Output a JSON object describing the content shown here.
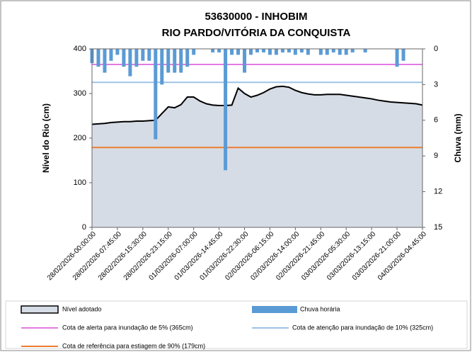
{
  "chart_data": {
    "type": "area",
    "title": "53630000 - INHOBIM",
    "subtitle": "RIO PARDO/VITÓRIA DA CONQUISTA",
    "ylabel": "Nível do Rio (cm)",
    "y2label": "Chuva (mm)",
    "categories": [
      "28/02/2026-00:00:00",
      null,
      null,
      null,
      "28/02/2026-07:45:00",
      null,
      null,
      null,
      "28/02/2026-15:30:00",
      null,
      null,
      null,
      "28/02/2026-23:15:00",
      null,
      null,
      null,
      "01/03/2026-07:00:00",
      null,
      null,
      null,
      "01/03/2026-14:45:00",
      null,
      null,
      null,
      "01/03/2026-22:30:00",
      null,
      null,
      null,
      "02/03/2026-06:15:00",
      null,
      null,
      null,
      "02/03/2026-14:00:00",
      null,
      null,
      null,
      "02/03/2026-21:45:00",
      null,
      null,
      null,
      "03/03/2026-05:30:00",
      null,
      null,
      null,
      "03/03/2026-13:15:00",
      null,
      null,
      null,
      "03/03/2026-21:00:00",
      null,
      null,
      null,
      "04/03/2026-04:45:00"
    ],
    "series": [
      {
        "name": "Nível adotado",
        "type": "area",
        "color": "#d6dce5",
        "line_color": "#000000",
        "values": [
          231,
          232,
          233,
          235,
          236,
          237,
          237,
          238,
          238,
          239,
          240,
          255,
          270,
          268,
          275,
          292,
          292,
          283,
          277,
          274,
          273,
          273,
          274,
          312,
          300,
          292,
          296,
          302,
          310,
          315,
          316,
          314,
          307,
          302,
          299,
          297,
          297,
          298,
          298,
          298,
          296,
          294,
          292,
          290,
          288,
          285,
          283,
          281,
          280,
          279,
          278,
          277,
          274
        ]
      },
      {
        "name": "Chuva horária",
        "type": "bar",
        "axis": "y2",
        "color": "#5b9bd5",
        "values": [
          1.2,
          1.5,
          2.0,
          1.0,
          0.5,
          1.5,
          2.3,
          1.5,
          1.0,
          1.0,
          7.6,
          3.0,
          2.0,
          2.0,
          2.0,
          1.5,
          0.5,
          0,
          0,
          0.3,
          0.3,
          10.2,
          0.5,
          0.5,
          2.0,
          0.5,
          0.3,
          0.3,
          0.5,
          0.5,
          0.3,
          0.3,
          0.5,
          0.3,
          0.5,
          0,
          0.5,
          0.5,
          0.3,
          0.5,
          0.5,
          0.3,
          0,
          0.3,
          0,
          0,
          0,
          0,
          1.5,
          1.0,
          0,
          0,
          0
        ]
      }
    ],
    "reference_lines": [
      {
        "name": "Cota de alerta para inundação de 5% (365cm)",
        "value": 365,
        "color": "#e47ae4"
      },
      {
        "name": "Cota de atenção para inundação de 10% (325cm)",
        "value": 325,
        "color": "#9dc3e6"
      },
      {
        "name": "Cota de referência para estiagem de 90% (179cm)",
        "value": 179,
        "color": "#ed7d31"
      }
    ],
    "ylim": [
      0,
      400
    ],
    "yticks": [
      0,
      100,
      200,
      300,
      400
    ],
    "y2lim": [
      15,
      0
    ],
    "y2ticks": [
      0,
      3,
      6,
      9,
      12,
      15
    ]
  }
}
